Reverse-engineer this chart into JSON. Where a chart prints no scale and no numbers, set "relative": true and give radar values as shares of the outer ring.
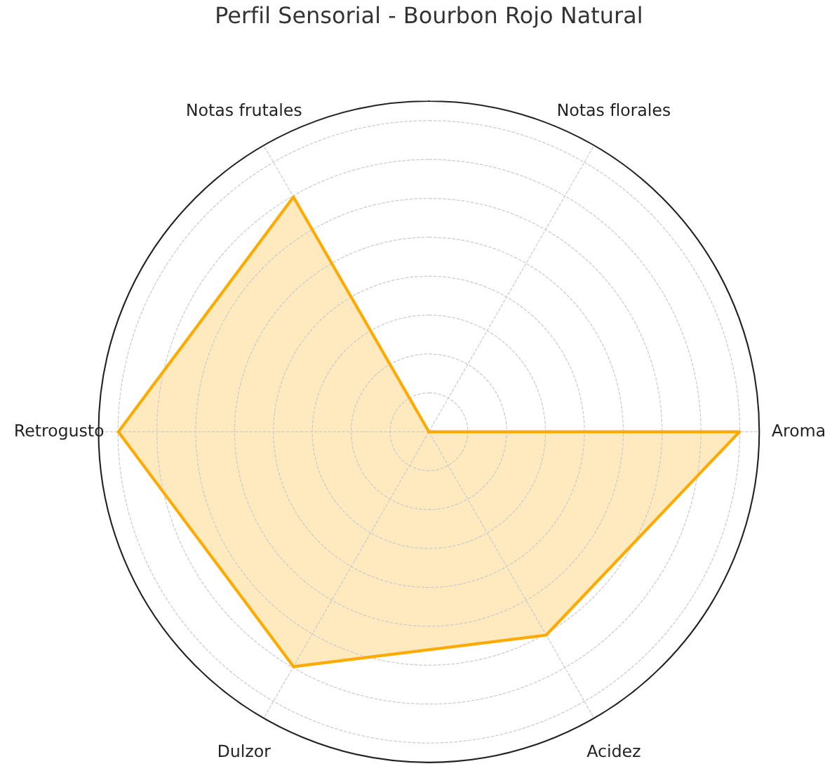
{
  "chart_data": {
    "type": "radar",
    "title": "Perfil Sensorial - Bourbon Rojo Natural",
    "categories": [
      "Notas florales",
      "Aroma",
      "Acidez",
      "Dulzor",
      "Retrogusto",
      "Notas frutales"
    ],
    "relative": true,
    "grid": true,
    "line_style": "solid",
    "marker": "none",
    "series": [
      {
        "color": "#ffaa00",
        "values": [
          0,
          0.94,
          0.71,
          0.82,
          0.94,
          0.82
        ]
      }
    ]
  }
}
